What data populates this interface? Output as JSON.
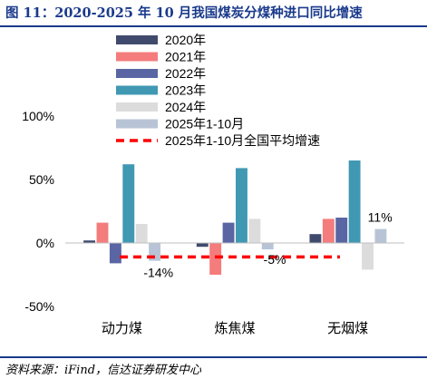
{
  "header": {
    "title": "图 11：2020-2025 年 10 月我国煤炭分煤种进口同比增速"
  },
  "footer": {
    "source": "资料来源：iFind，信达证券研发中心"
  },
  "chart_data": {
    "type": "bar",
    "categories": [
      "动力煤",
      "炼焦煤",
      "无烟煤"
    ],
    "series": [
      {
        "name": "2020年",
        "color": "#404a6c",
        "values": [
          2,
          -3,
          7
        ]
      },
      {
        "name": "2021年",
        "color": "#f47c7c",
        "values": [
          16,
          -25,
          19
        ]
      },
      {
        "name": "2022年",
        "color": "#5966a3",
        "values": [
          -16,
          16,
          20
        ]
      },
      {
        "name": "2023年",
        "color": "#4098b3",
        "values": [
          62,
          59,
          65
        ]
      },
      {
        "name": "2024年",
        "color": "#dcdcdc",
        "values": [
          15,
          19,
          -21
        ]
      },
      {
        "name": "2025年1-10月",
        "color": "#b8c4d6",
        "values": [
          -14,
          -5,
          11
        ]
      }
    ],
    "average_line": {
      "name": "2025年1-10月全国平均增速",
      "color": "#ff0000",
      "value": -11
    },
    "data_labels": [
      "-14%",
      "-5%",
      "11%"
    ],
    "yticks": [
      "-50%",
      "0%",
      "50%",
      "100%"
    ],
    "ylim": [
      -50,
      100
    ],
    "legend_position": "top"
  }
}
